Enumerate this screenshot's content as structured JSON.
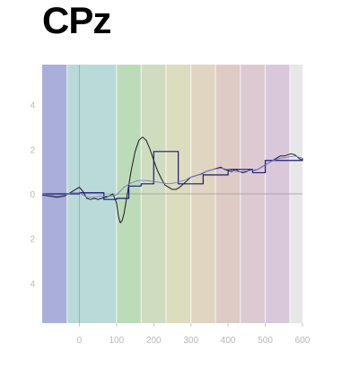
{
  "title": "CPz",
  "chart_data": {
    "type": "line",
    "title": "CPz",
    "xlim": [
      -100,
      600
    ],
    "ylim": [
      -5.8,
      5.8
    ],
    "x_ticks": [
      0,
      100,
      200,
      300,
      400,
      500,
      600
    ],
    "x_tick_labels": [
      "0",
      "100",
      "200",
      "300",
      "400",
      "500",
      "600"
    ],
    "y_ticks": [
      4,
      2,
      0,
      -2,
      -4
    ],
    "y_tick_labels": [
      "4",
      "2",
      "0",
      "2",
      "4"
    ],
    "bands": [
      {
        "x0": -100,
        "x1": -33,
        "color": "#a9aedb"
      },
      {
        "x0": -33,
        "x1": 100,
        "color": "#b9dad8"
      },
      {
        "x0": 100,
        "x1": 166,
        "color": "#bcdbb9"
      },
      {
        "x0": 166,
        "x1": 233,
        "color": "#cfdcc0"
      },
      {
        "x0": 233,
        "x1": 300,
        "color": "#dcdcbe"
      },
      {
        "x0": 300,
        "x1": 366,
        "color": "#dfd5c0"
      },
      {
        "x0": 366,
        "x1": 433,
        "color": "#dfcbc6"
      },
      {
        "x0": 433,
        "x1": 500,
        "color": "#dccad3"
      },
      {
        "x0": 500,
        "x1": 566,
        "color": "#d9c8da"
      },
      {
        "x0": 566,
        "x1": 600,
        "color": "#e7e7e7"
      }
    ],
    "band_separators": [
      -33,
      100,
      166,
      233,
      300,
      366,
      433,
      500,
      566
    ],
    "series": [
      {
        "style": "smooth",
        "color": "#1a1a1a",
        "x": [
          -100,
          -80,
          -60,
          -40,
          -30,
          -20,
          -10,
          0,
          10,
          20,
          30,
          40,
          50,
          60,
          70,
          80,
          90,
          100,
          105,
          110,
          115,
          120,
          130,
          140,
          150,
          160,
          170,
          180,
          190,
          200,
          210,
          220,
          230,
          240,
          250,
          260,
          270,
          280,
          290,
          300,
          310,
          320,
          330,
          340,
          350,
          360,
          370,
          380,
          390,
          400,
          410,
          420,
          430,
          440,
          450,
          460,
          470,
          480,
          490,
          500,
          510,
          520,
          530,
          540,
          550,
          560,
          570,
          580,
          590,
          600
        ],
        "y": [
          -0.05,
          -0.1,
          -0.15,
          -0.1,
          0,
          0.1,
          0.2,
          0.3,
          0.1,
          -0.2,
          -0.25,
          -0.2,
          -0.25,
          -0.2,
          -0.15,
          -0.1,
          0,
          -0.4,
          -1.0,
          -1.3,
          -1.2,
          -0.9,
          0.1,
          1.1,
          1.9,
          2.4,
          2.55,
          2.4,
          2.0,
          1.5,
          1.05,
          0.7,
          0.4,
          0.3,
          0.2,
          0.2,
          0.3,
          0.45,
          0.6,
          0.75,
          0.8,
          0.85,
          0.9,
          1.0,
          1.05,
          1.1,
          1.15,
          1.2,
          1.1,
          1.05,
          1.0,
          1.1,
          1.0,
          0.95,
          1.0,
          1.1,
          1.05,
          1.1,
          1.2,
          1.3,
          1.4,
          1.5,
          1.6,
          1.7,
          1.7,
          1.75,
          1.8,
          1.75,
          1.6,
          1.5
        ]
      },
      {
        "style": "step",
        "color": "#1a1a7a",
        "x": [
          -100,
          -33,
          0,
          33,
          66,
          100,
          133,
          166,
          200,
          233,
          266,
          300,
          333,
          366,
          400,
          433,
          466,
          500,
          533,
          566,
          600
        ],
        "y": [
          0,
          0,
          0.05,
          0.05,
          -0.25,
          -0.2,
          0.35,
          0.45,
          1.9,
          1.9,
          0.45,
          0.45,
          0.85,
          0.85,
          1.1,
          1.1,
          0.95,
          1.5,
          1.5,
          1.5,
          1.6
        ]
      },
      {
        "style": "flat",
        "color": "#7a7ac8",
        "x": [
          -100,
          -80,
          -60,
          -40,
          -20,
          0,
          20,
          40,
          60,
          80,
          100,
          120,
          140,
          160,
          180,
          200,
          220,
          240,
          260,
          280,
          300,
          320,
          340,
          360,
          380,
          400,
          420,
          440,
          460,
          480,
          500,
          520,
          540,
          560,
          580,
          600
        ],
        "y": [
          0.0,
          -0.05,
          -0.1,
          -0.05,
          0.05,
          0.05,
          -0.15,
          -0.15,
          -0.1,
          -0.1,
          -0.05,
          0.3,
          0.5,
          0.6,
          0.6,
          0.55,
          0.5,
          0.45,
          0.5,
          0.6,
          0.75,
          0.85,
          1.0,
          1.1,
          1.15,
          1.1,
          1.0,
          1.0,
          1.05,
          1.1,
          1.3,
          1.5,
          1.6,
          1.65,
          1.7,
          1.6
        ]
      }
    ]
  }
}
